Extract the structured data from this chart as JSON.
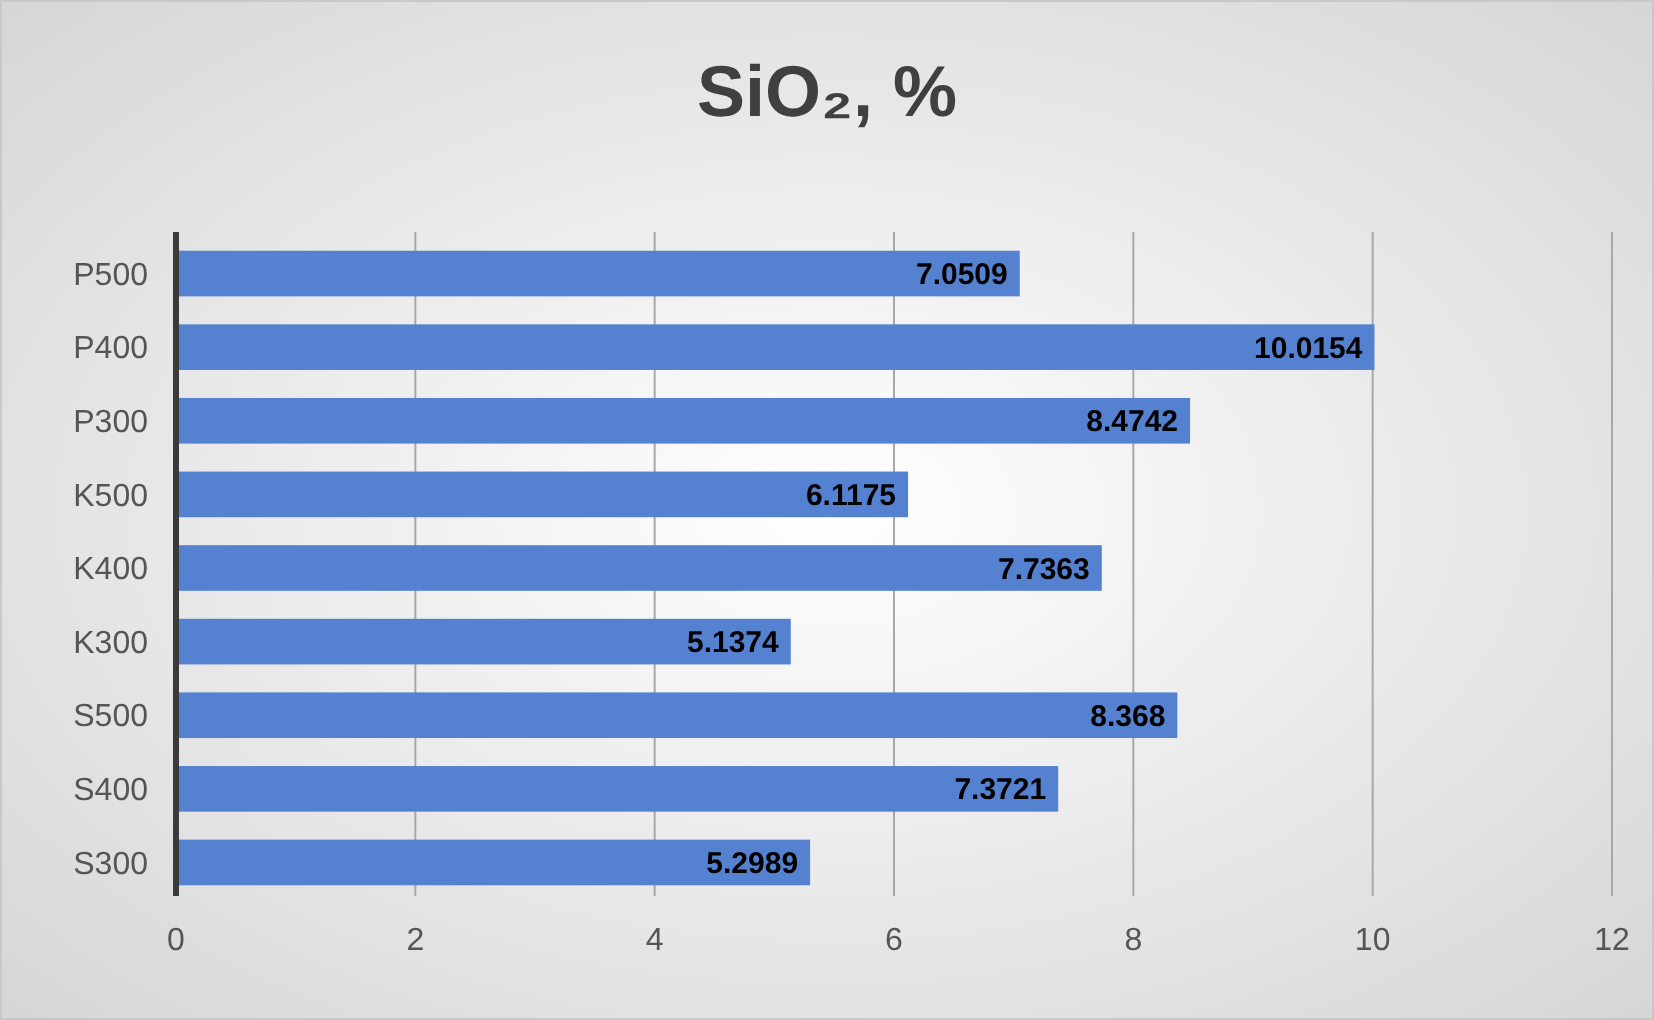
{
  "chart_data": {
    "type": "bar",
    "orientation": "horizontal",
    "title": "SiO₂, %",
    "categories": [
      "P500",
      "P400",
      "P300",
      "K500",
      "K400",
      "K300",
      "S500",
      "S400",
      "S300"
    ],
    "values": [
      7.0509,
      10.0154,
      8.4742,
      6.1175,
      7.7363,
      5.1374,
      8.368,
      7.3721,
      5.2989
    ],
    "color": "#5582d0",
    "xlim": [
      0,
      12
    ],
    "xticks": [
      0,
      2,
      4,
      6,
      8,
      10,
      12
    ],
    "grid": "x",
    "data_labels": true
  }
}
